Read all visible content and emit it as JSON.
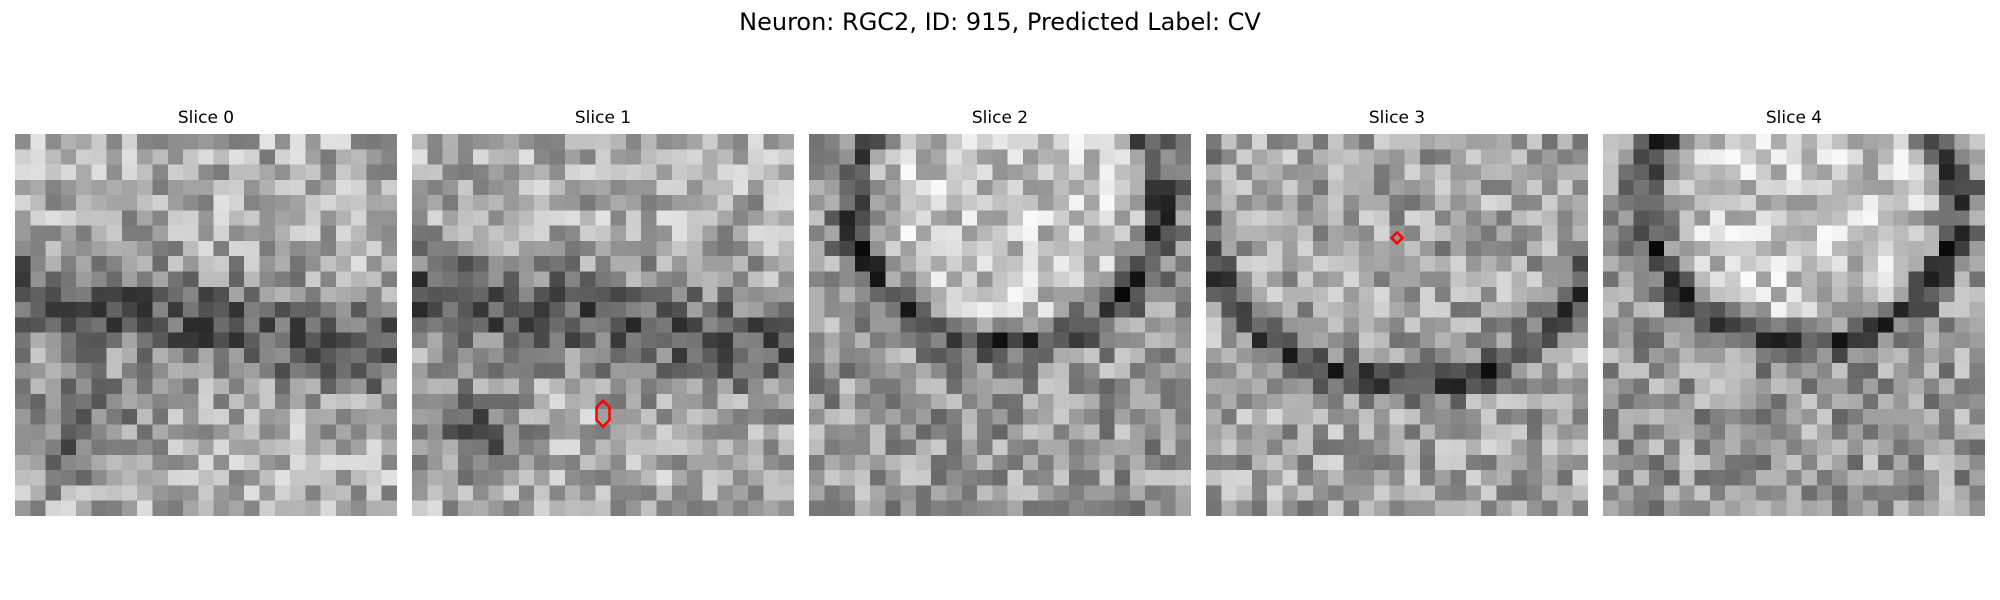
{
  "figure": {
    "title": "Neuron: RGC2, ID: 915, Predicted Label: CV",
    "grid_size": 25,
    "marker_color": "#ff0000",
    "panels": [
      {
        "title": "Slice 0",
        "texture": "dark-band",
        "marker": null
      },
      {
        "title": "Slice 1",
        "texture": "dark-band",
        "marker": {
          "shape": "hexagon",
          "col": 12.5,
          "row": 18.3
        }
      },
      {
        "title": "Slice 2",
        "texture": "cell-top",
        "marker": null
      },
      {
        "title": "Slice 3",
        "texture": "curved-membrane",
        "marker": {
          "shape": "diamond",
          "col": 12.5,
          "row": 6.8
        }
      },
      {
        "title": "Slice 4",
        "texture": "cell-top",
        "marker": null
      }
    ]
  }
}
